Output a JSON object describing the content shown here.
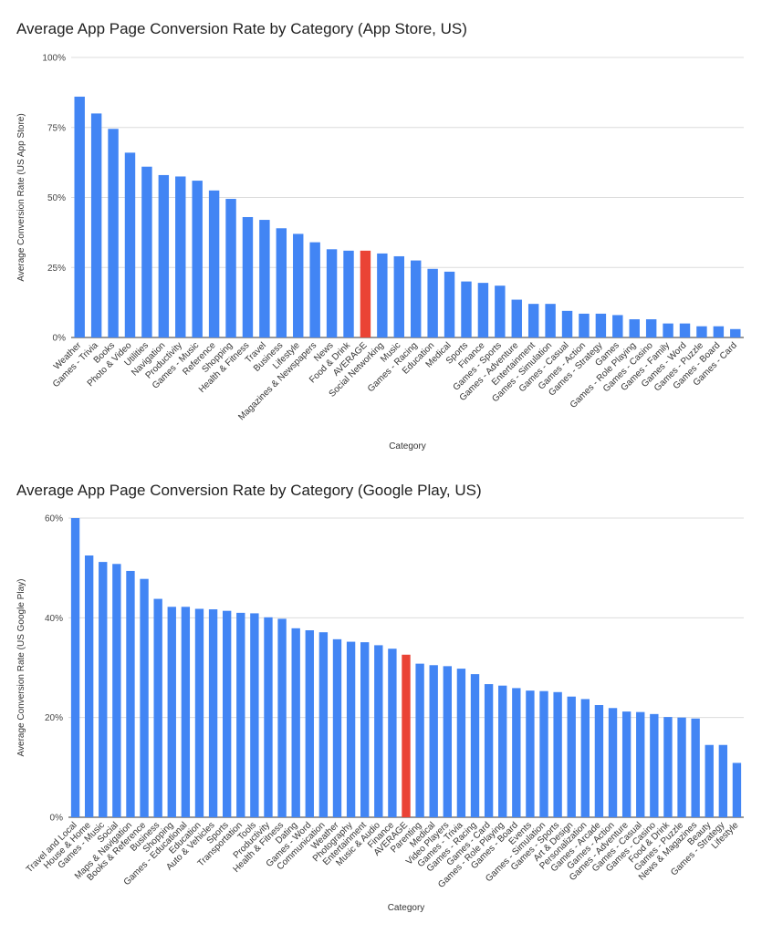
{
  "colors": {
    "bar": "#4285f4",
    "highlight": "#ea4335",
    "grid": "#dcdcdc"
  },
  "highlight_label": "AVERAGE",
  "chart_data": [
    {
      "type": "bar",
      "title": "Average App Page Conversion Rate by Category (App Store, US)",
      "xlabel": "Category",
      "ylabel": "Average Conversion Rate (US App Store)",
      "ylim": [
        0,
        100
      ],
      "yticks": [
        0,
        25,
        50,
        75,
        100
      ],
      "ytick_labels": [
        "0%",
        "25%",
        "50%",
        "75%",
        "100%"
      ],
      "categories": [
        "Weather",
        "Games - Trivia",
        "Books",
        "Photo & Video",
        "Utilities",
        "Navigation",
        "Productivity",
        "Games - Music",
        "Reference",
        "Shopping",
        "Health & Fitness",
        "Travel",
        "Business",
        "Lifestyle",
        "Magazines & Newspapers",
        "News",
        "Food & Drink",
        "AVERAGE",
        "Social Networking",
        "Music",
        "Games - Racing",
        "Education",
        "Medical",
        "Sports",
        "Finance",
        "Games - Sports",
        "Games - Adventure",
        "Entertainment",
        "Games - Simulation",
        "Games - Casual",
        "Games - Action",
        "Games - Strategy",
        "Games",
        "Games - Role Playing",
        "Games - Casino",
        "Games - Family",
        "Games - Word",
        "Games - Puzzle",
        "Games - Board",
        "Games - Card"
      ],
      "values": [
        86,
        80,
        74.5,
        66,
        61,
        58,
        57.5,
        56,
        52.5,
        49.5,
        43,
        42,
        39,
        37,
        34,
        31.5,
        31,
        31,
        30,
        29,
        27.5,
        24.5,
        23.5,
        20,
        19.5,
        18.5,
        13.5,
        12,
        12,
        9.5,
        8.5,
        8.5,
        8,
        6.5,
        6.5,
        5,
        5,
        4,
        4,
        3
      ]
    },
    {
      "type": "bar",
      "title": "Average App Page Conversion Rate by Category (Google Play, US)",
      "xlabel": "Category",
      "ylabel": "Average Conversion Rate (US Google Play)",
      "ylim": [
        0,
        60
      ],
      "yticks": [
        0,
        20,
        40,
        60
      ],
      "ytick_labels": [
        "0%",
        "20%",
        "40%",
        "60%"
      ],
      "categories": [
        "Travel and Local",
        "House & Home",
        "Games - Music",
        "Social",
        "Maps & Navigation",
        "Books & Reference",
        "Business",
        "Shopping",
        "Games - Educational",
        "Education",
        "Auto & Vehicles",
        "Sports",
        "Transportation",
        "Tools",
        "Productivity",
        "Health & Fitness",
        "Dating",
        "Games - Word",
        "Communication",
        "Weather",
        "Photography",
        "Entertainment",
        "Music & Audio",
        "Finance",
        "AVERAGE",
        "Parenting",
        "Medical",
        "Video Players",
        "Games - Trivia",
        "Games - Racing",
        "Games - Card",
        "Games - Role Playing",
        "Games - Board",
        "Events",
        "Games - Simulation",
        "Games - Sports",
        "Art & Design",
        "Personalization",
        "Games - Arcade",
        "Games - Action",
        "Games - Adventure",
        "Games - Casual",
        "Games - Casino",
        "Food & Drink",
        "Games - Puzzle",
        "News & Magazines",
        "Beauty",
        "Games - Strategy",
        "Lifestyle"
      ],
      "values": [
        60,
        52.5,
        51.2,
        50.8,
        49.4,
        47.8,
        43.8,
        42.2,
        42.2,
        41.8,
        41.7,
        41.4,
        41,
        40.9,
        40.1,
        39.8,
        37.9,
        37.5,
        37.1,
        35.7,
        35.2,
        35.1,
        34.5,
        33.8,
        32.6,
        30.8,
        30.5,
        30.3,
        29.8,
        28.7,
        26.7,
        26.4,
        25.9,
        25.4,
        25.3,
        25.1,
        24.2,
        23.7,
        22.5,
        21.9,
        21.2,
        21.1,
        20.7,
        20.1,
        20,
        19.8,
        14.5,
        14.5,
        10.9
      ]
    }
  ]
}
